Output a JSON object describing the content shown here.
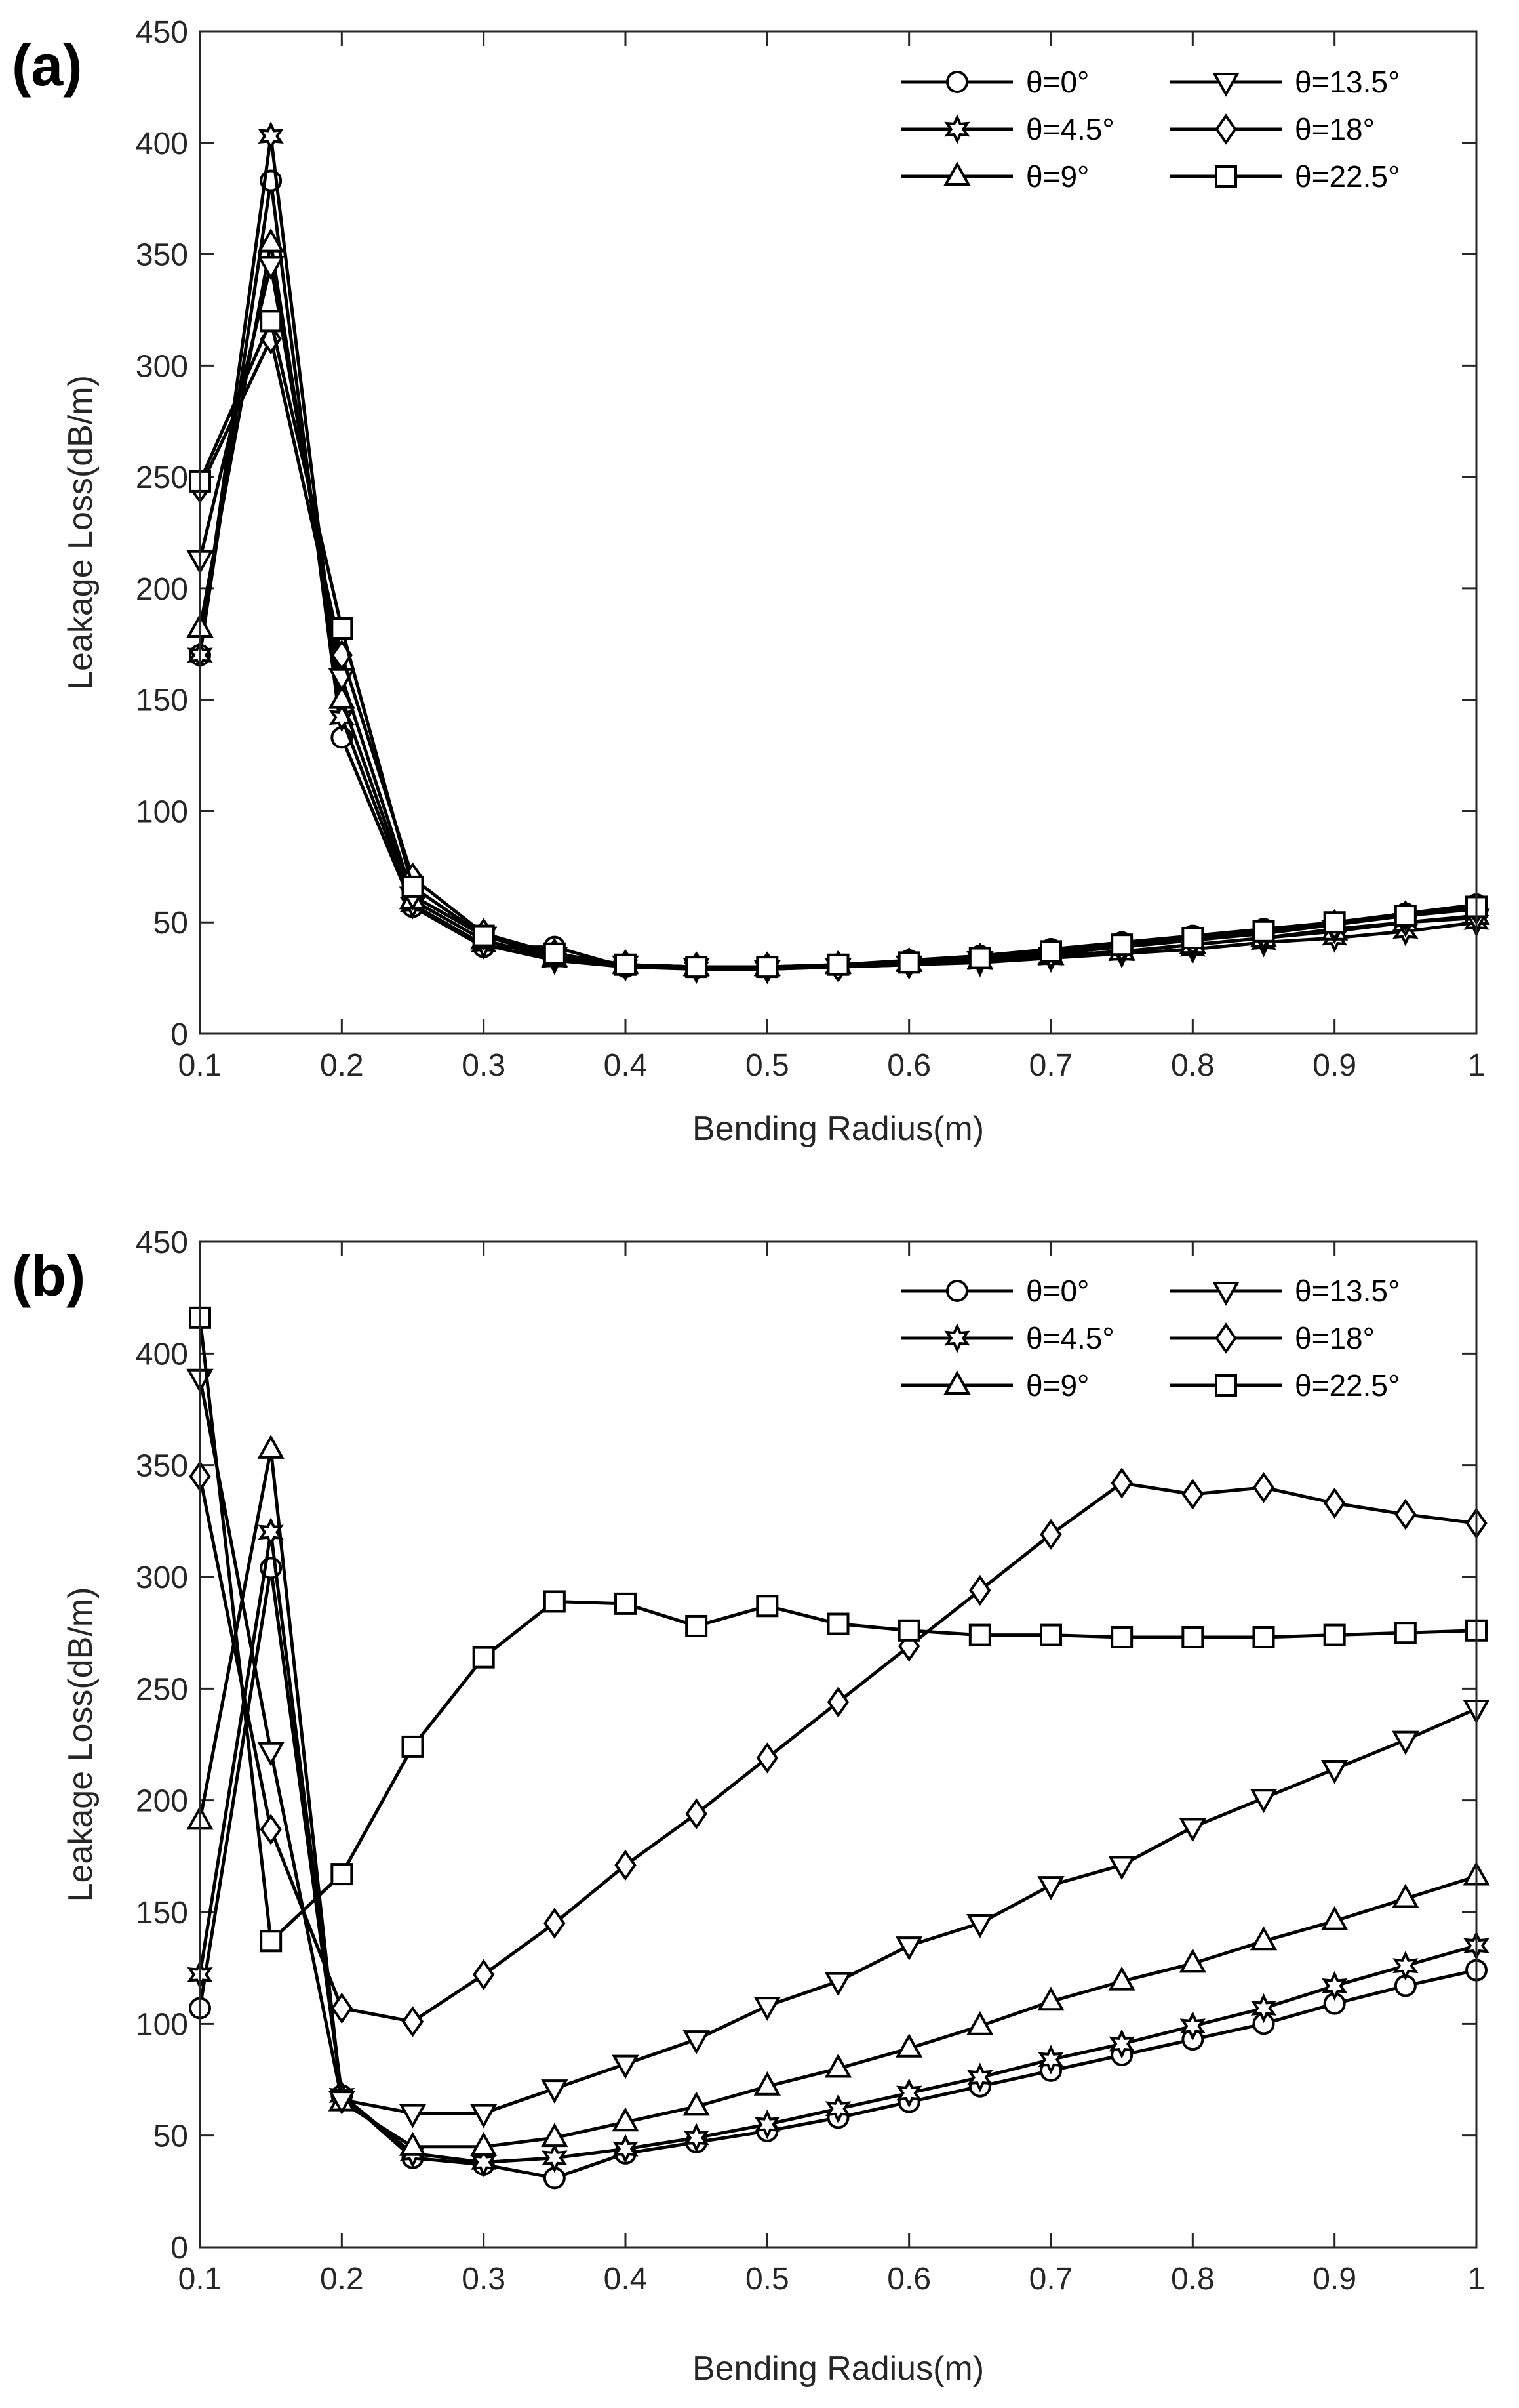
{
  "chart_data": [
    {
      "panel": "(a)",
      "type": "line",
      "xlabel": "Bending Radius(m)",
      "ylabel": "Leakage Loss(dB/m)",
      "xlim": [
        0.1,
        1
      ],
      "ylim": [
        0,
        450
      ],
      "xticks": [
        "0.1",
        "0.2",
        "0.3",
        "0.4",
        "0.5",
        "0.6",
        "0.7",
        "0.8",
        "0.9",
        "1"
      ],
      "yticks": [
        "0",
        "50",
        "100",
        "150",
        "200",
        "250",
        "300",
        "350",
        "400",
        "450"
      ],
      "legend_position": "top-right",
      "x": [
        0.1,
        0.15,
        0.2,
        0.25,
        0.3,
        0.35,
        0.4,
        0.45,
        0.5,
        0.55,
        0.6,
        0.65,
        0.7,
        0.75,
        0.8,
        0.85,
        0.9,
        0.95,
        1
      ],
      "series": [
        {
          "name": "θ=0°",
          "marker": "circle",
          "values": [
            170,
            383,
            133,
            57,
            39,
            39,
            30,
            30,
            30,
            31,
            33,
            35,
            38,
            41,
            44,
            47,
            50,
            54,
            58
          ]
        },
        {
          "name": "θ=4.5°",
          "marker": "hexagram",
          "values": [
            170,
            403,
            142,
            58,
            40,
            33,
            30,
            29,
            29,
            30,
            31,
            32,
            34,
            36,
            38,
            41,
            43,
            46,
            50
          ]
        },
        {
          "name": "θ=9°",
          "marker": "triangle-up",
          "values": [
            182,
            355,
            150,
            60,
            42,
            34,
            31,
            30,
            30,
            31,
            32,
            33,
            35,
            37,
            40,
            43,
            46,
            50,
            53
          ]
        },
        {
          "name": "θ=13.5°",
          "marker": "triangle-down",
          "values": [
            213,
            345,
            160,
            62,
            44,
            35,
            31,
            30,
            29,
            30,
            31,
            33,
            35,
            37,
            40,
            43,
            47,
            50,
            52
          ]
        },
        {
          "name": "θ=18°",
          "marker": "diamond",
          "values": [
            245,
            312,
            170,
            70,
            45,
            36,
            31,
            30,
            30,
            30,
            32,
            34,
            36,
            39,
            42,
            45,
            49,
            53,
            56
          ]
        },
        {
          "name": "θ=22.5°",
          "marker": "square",
          "values": [
            248,
            320,
            182,
            66,
            44,
            36,
            31,
            30,
            30,
            31,
            32,
            34,
            37,
            40,
            43,
            46,
            50,
            53,
            57
          ]
        }
      ]
    },
    {
      "panel": "(b)",
      "type": "line",
      "xlabel": "Bending Radius(m)",
      "ylabel": "Leakage Loss(dB/m)",
      "xlim": [
        0.1,
        1
      ],
      "ylim": [
        0,
        450
      ],
      "xticks": [
        "0.1",
        "0.2",
        "0.3",
        "0.4",
        "0.5",
        "0.6",
        "0.7",
        "0.8",
        "0.9",
        "1"
      ],
      "yticks": [
        "0",
        "50",
        "100",
        "150",
        "200",
        "250",
        "300",
        "350",
        "400",
        "450"
      ],
      "legend_position": "top-right",
      "x": [
        0.1,
        0.15,
        0.2,
        0.25,
        0.3,
        0.35,
        0.4,
        0.45,
        0.5,
        0.55,
        0.6,
        0.65,
        0.7,
        0.75,
        0.8,
        0.85,
        0.9,
        0.95,
        1
      ],
      "series": [
        {
          "name": "θ=0°",
          "marker": "circle",
          "values": [
            107,
            304,
            68,
            40,
            37,
            31,
            42,
            47,
            52,
            58,
            65,
            72,
            79,
            86,
            93,
            100,
            109,
            117,
            124
          ]
        },
        {
          "name": "θ=4.5°",
          "marker": "hexagram",
          "values": [
            122,
            320,
            68,
            42,
            38,
            40,
            44,
            49,
            55,
            62,
            69,
            76,
            84,
            91,
            99,
            107,
            117,
            126,
            135
          ]
        },
        {
          "name": "θ=9°",
          "marker": "triangle-up",
          "values": [
            191,
            357,
            65,
            45,
            45,
            49,
            56,
            63,
            72,
            80,
            89,
            99,
            110,
            119,
            127,
            137,
            146,
            156,
            166
          ]
        },
        {
          "name": "θ=13.5°",
          "marker": "triangle-down",
          "values": [
            389,
            222,
            66,
            60,
            60,
            71,
            82,
            93,
            108,
            119,
            135,
            145,
            162,
            171,
            188,
            201,
            214,
            227,
            241
          ]
        },
        {
          "name": "θ=18°",
          "marker": "diamond",
          "values": [
            345,
            187,
            107,
            101,
            122,
            145,
            171,
            194,
            219,
            244,
            269,
            294,
            319,
            342,
            337,
            340,
            333,
            328,
            324
          ]
        },
        {
          "name": "θ=22.5°",
          "marker": "square",
          "values": [
            416,
            137,
            167,
            224,
            264,
            289,
            288,
            278,
            287,
            279,
            276,
            274,
            274,
            273,
            273,
            273,
            274,
            275,
            276
          ]
        }
      ]
    }
  ]
}
